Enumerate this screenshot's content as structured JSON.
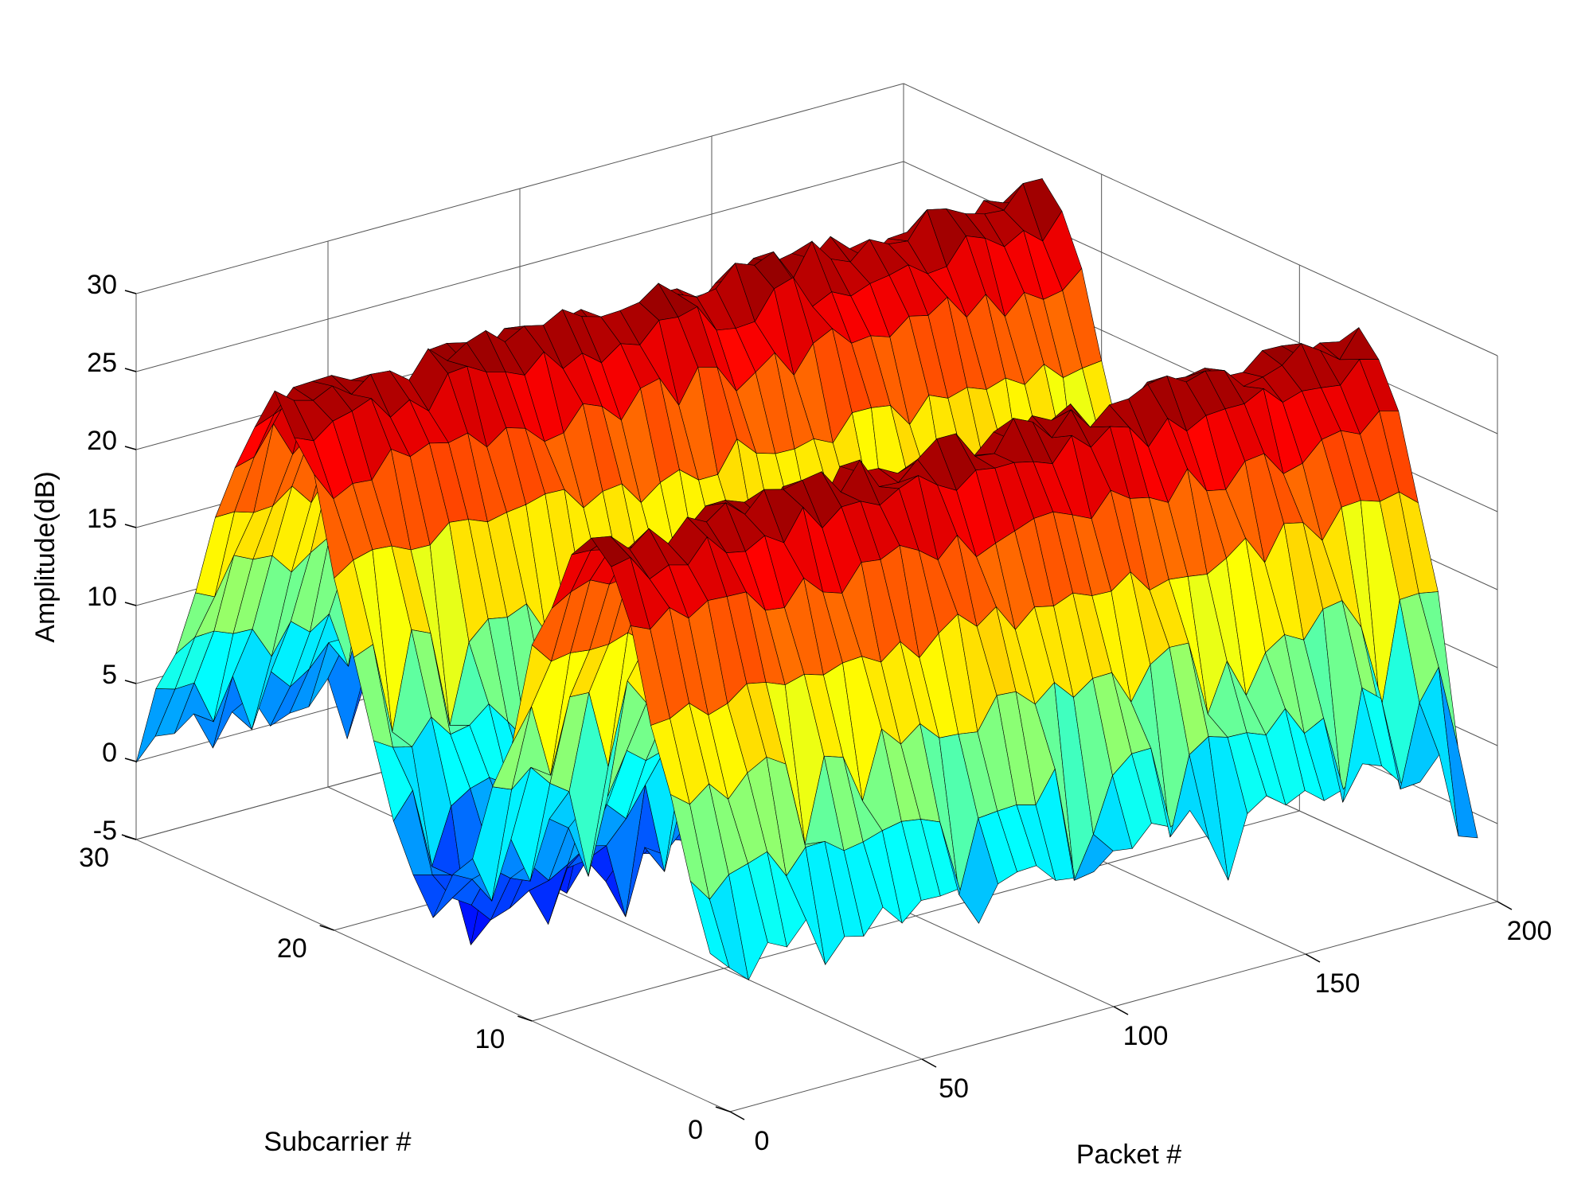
{
  "chart_data": {
    "type": "surface3d",
    "title": "",
    "xlabel": "Packet #",
    "ylabel": "Subcarrier #",
    "zlabel": "Amplitude(dB)",
    "xlim": [
      0,
      200
    ],
    "ylim": [
      0,
      30
    ],
    "zlim": [
      -5,
      30
    ],
    "x_ticks": [
      0,
      50,
      100,
      150,
      200
    ],
    "y_ticks": [
      0,
      10,
      20,
      30
    ],
    "z_ticks": [
      -5,
      0,
      5,
      10,
      15,
      20,
      25,
      30
    ],
    "grid": true,
    "colormap": "jet",
    "edge_color": "#000000",
    "grid_sampling": {
      "packets_step": 5,
      "subcarriers_step": 1
    },
    "peak_amplitude": 28,
    "min_amplitude": -7
  }
}
